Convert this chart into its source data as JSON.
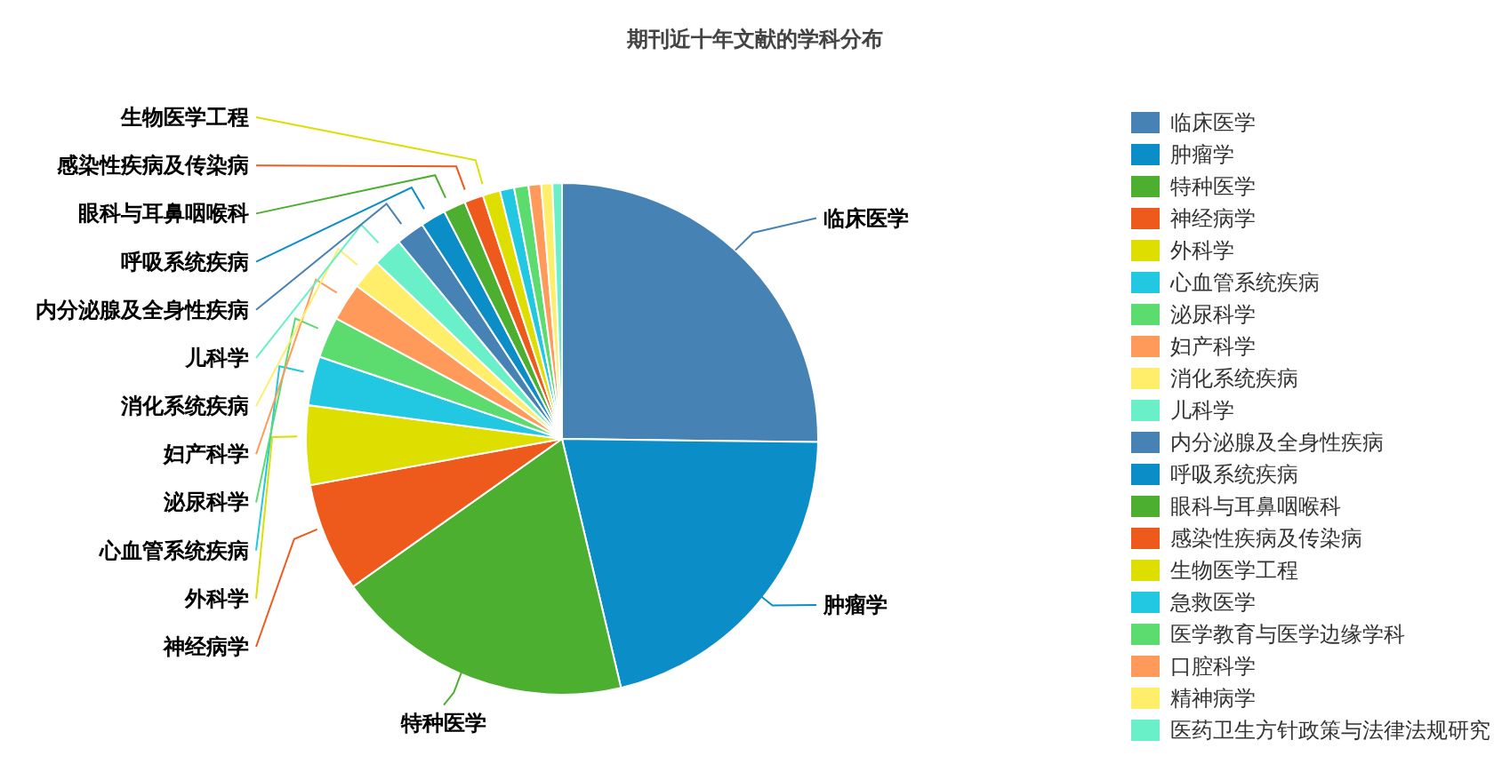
{
  "chart_data": {
    "type": "pie",
    "title": "期刊近十年文献的学科分布",
    "categories": [
      "临床医学",
      "肿瘤学",
      "特种医学",
      "神经病学",
      "外科学",
      "心血管系统疾病",
      "泌尿科学",
      "妇产科学",
      "消化系统疾病",
      "儿科学",
      "内分泌腺及全身性疾病",
      "呼吸系统疾病",
      "眼科与耳鼻咽喉科",
      "感染性疾病及传染病",
      "生物医学工程",
      "急救医学",
      "医学教育与医学边缘学科",
      "口腔科学",
      "精神病学",
      "医药卫生方针政策与法律法规研究"
    ],
    "values": [
      25.2,
      21.1,
      18.9,
      6.9,
      5.0,
      3.1,
      2.6,
      2.4,
      1.9,
      1.9,
      1.8,
      1.6,
      1.4,
      1.2,
      1.1,
      0.9,
      0.9,
      0.8,
      0.7,
      0.6
    ],
    "colors": [
      "#4682b4",
      "#0b8ec8",
      "#4caf30",
      "#ee5a1c",
      "#dede00",
      "#22c8e2",
      "#5cdc6e",
      "#ff9a5a",
      "#ffee6a",
      "#6af0c8",
      "#4682b4",
      "#0b8ec8",
      "#4caf30",
      "#ee5a1c",
      "#dede00",
      "#22c8e2",
      "#5cdc6e",
      "#ff9a5a",
      "#ffee6a",
      "#6af0c8"
    ],
    "legend": "right"
  }
}
